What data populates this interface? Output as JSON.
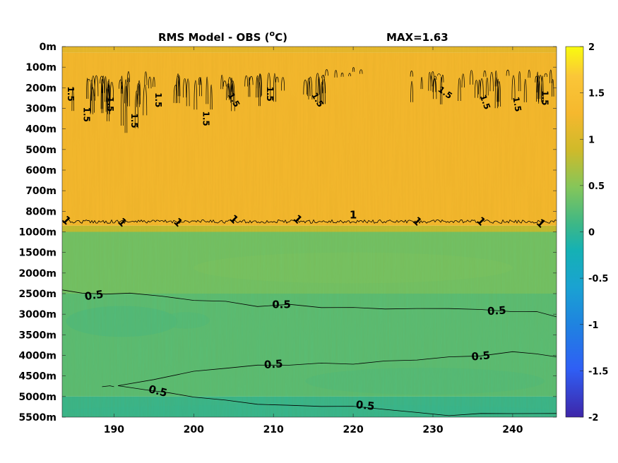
{
  "chart_data": {
    "type": "heatmap",
    "title_left": "RMS Model - OBS (",
    "title_unit_sup": "o",
    "title_unit_rest": "C)",
    "title_right": "MAX=1.63",
    "y_tick_labels": [
      "0m",
      "100m",
      "200m",
      "300m",
      "400m",
      "500m",
      "600m",
      "700m",
      "800m",
      "1000m",
      "1500m",
      "2000m",
      "2500m",
      "3000m",
      "3500m",
      "4000m",
      "4500m",
      "5000m",
      "5500m"
    ],
    "x_ticks": [
      "190",
      "200",
      "210",
      "220",
      "230",
      "240"
    ],
    "x_values": [
      190,
      200,
      210,
      220,
      230,
      240
    ],
    "xlim": [
      183.5,
      245.5
    ],
    "colorbar": {
      "ticks": [
        "2",
        "1.5",
        "1",
        "0.5",
        "0",
        "-0.5",
        "-1",
        "-1.5",
        "-2"
      ],
      "tick_values": [
        2,
        1.5,
        1,
        0.5,
        0,
        -0.5,
        -1,
        -1.5,
        -2
      ],
      "clim": [
        -2,
        2
      ],
      "colormap": "parula"
    },
    "field_bands": [
      {
        "depth_index_from": 0,
        "depth_index_to": 0.3,
        "value": 1.3
      },
      {
        "depth_index_from": 0.3,
        "depth_index_to": 8.7,
        "value": 1.4
      },
      {
        "depth_index_from": 8.7,
        "depth_index_to": 9.0,
        "value": 1.05
      },
      {
        "depth_index_from": 9.0,
        "depth_index_to": 12.0,
        "value": 0.72
      },
      {
        "depth_index_from": 12.0,
        "depth_index_to": 17.0,
        "value": 0.62
      },
      {
        "depth_index_from": 17.0,
        "depth_index_to": 18.0,
        "value": 0.45
      }
    ],
    "contour_labels": [
      {
        "text": "0.5",
        "x": 187.5,
        "depth_index": 12.1,
        "angle": -8
      },
      {
        "text": "0.5",
        "x": 211,
        "depth_index": 12.55,
        "angle": 0
      },
      {
        "text": "0.5",
        "x": 238,
        "depth_index": 12.85,
        "angle": -4
      },
      {
        "text": "0.5",
        "x": 236,
        "depth_index": 15.05,
        "angle": -5
      },
      {
        "text": "0.5",
        "x": 210,
        "depth_index": 15.45,
        "angle": -4
      },
      {
        "text": "0.5",
        "x": 195.5,
        "depth_index": 16.75,
        "angle": 14
      },
      {
        "text": "0.5",
        "x": 221.5,
        "depth_index": 17.45,
        "angle": 6
      },
      {
        "text": "1",
        "x": 184,
        "depth_index": 8.45,
        "angle": 45
      },
      {
        "text": "1",
        "x": 191,
        "depth_index": 8.55,
        "angle": 45
      },
      {
        "text": "1",
        "x": 198,
        "depth_index": 8.55,
        "angle": 45
      },
      {
        "text": "1",
        "x": 205,
        "depth_index": 8.4,
        "angle": 45
      },
      {
        "text": "1",
        "x": 213,
        "depth_index": 8.4,
        "angle": 45
      },
      {
        "text": "1",
        "x": 220,
        "depth_index": 8.2,
        "angle": 0
      },
      {
        "text": "1",
        "x": 228,
        "depth_index": 8.5,
        "angle": 45
      },
      {
        "text": "1",
        "x": 236,
        "depth_index": 8.5,
        "angle": 45
      },
      {
        "text": "1",
        "x": 243.5,
        "depth_index": 8.6,
        "angle": 45
      },
      {
        "text": "1.5",
        "x": 184.5,
        "depth_index": 2.3,
        "angle": 90
      },
      {
        "text": "1.5",
        "x": 186.5,
        "depth_index": 3.3,
        "angle": 90
      },
      {
        "text": "1.5",
        "x": 189.5,
        "depth_index": 2.8,
        "angle": 90
      },
      {
        "text": "1.5",
        "x": 192.5,
        "depth_index": 3.6,
        "angle": 90
      },
      {
        "text": "1.5",
        "x": 195.5,
        "depth_index": 2.6,
        "angle": 90
      },
      {
        "text": "1.5",
        "x": 201.5,
        "depth_index": 3.5,
        "angle": 90
      },
      {
        "text": "1.5",
        "x": 205,
        "depth_index": 2.6,
        "angle": 60
      },
      {
        "text": "1.5",
        "x": 209.5,
        "depth_index": 2.3,
        "angle": 90
      },
      {
        "text": "1.5",
        "x": 215.5,
        "depth_index": 2.6,
        "angle": 60
      },
      {
        "text": "1.5",
        "x": 231.5,
        "depth_index": 2.25,
        "angle": 35
      },
      {
        "text": "1.5",
        "x": 236.5,
        "depth_index": 2.7,
        "angle": 70
      },
      {
        "text": "1.5",
        "x": 240.5,
        "depth_index": 2.8,
        "angle": 80
      },
      {
        "text": "1.5",
        "x": 244,
        "depth_index": 2.5,
        "angle": 90
      }
    ],
    "contour_lines": [
      {
        "level": 0.5,
        "points": [
          [
            183.5,
            11.85
          ],
          [
            186,
            11.95
          ],
          [
            189,
            12.05
          ],
          [
            192,
            11.95
          ],
          [
            196,
            12.15
          ],
          [
            200,
            12.3
          ],
          [
            204,
            12.4
          ],
          [
            208,
            12.6
          ],
          [
            212,
            12.55
          ],
          [
            216,
            12.65
          ],
          [
            220,
            12.7
          ],
          [
            224,
            12.72
          ],
          [
            228,
            12.75
          ],
          [
            232,
            12.7
          ],
          [
            236,
            12.8
          ],
          [
            240,
            12.85
          ],
          [
            243,
            12.9
          ],
          [
            245.5,
            13.1
          ]
        ]
      },
      {
        "level": 0.5,
        "points": [
          [
            190.5,
            16.5
          ],
          [
            195,
            16.15
          ],
          [
            200,
            15.8
          ],
          [
            204,
            15.6
          ],
          [
            208,
            15.5
          ],
          [
            212,
            15.45
          ],
          [
            216,
            15.4
          ],
          [
            220,
            15.4
          ],
          [
            224,
            15.3
          ],
          [
            228,
            15.2
          ],
          [
            232,
            15.1
          ],
          [
            236,
            15.0
          ],
          [
            240,
            14.85
          ],
          [
            243,
            14.9
          ],
          [
            245.5,
            15.1
          ]
        ]
      },
      {
        "level": 0.5,
        "points": [
          [
            190.5,
            16.5
          ],
          [
            194,
            16.65
          ],
          [
            197,
            16.85
          ],
          [
            200,
            17.0
          ],
          [
            204,
            17.2
          ],
          [
            208,
            17.35
          ],
          [
            212,
            17.45
          ],
          [
            216,
            17.45
          ],
          [
            220,
            17.5
          ],
          [
            224,
            17.6
          ],
          [
            228,
            17.8
          ],
          [
            232,
            17.9
          ],
          [
            236,
            17.85
          ],
          [
            240,
            17.8
          ],
          [
            245.5,
            17.85
          ]
        ]
      },
      {
        "level": 0.5,
        "points": [
          [
            188.5,
            16.55
          ],
          [
            189.5,
            16.45
          ],
          [
            190,
            16.55
          ]
        ]
      }
    ]
  }
}
